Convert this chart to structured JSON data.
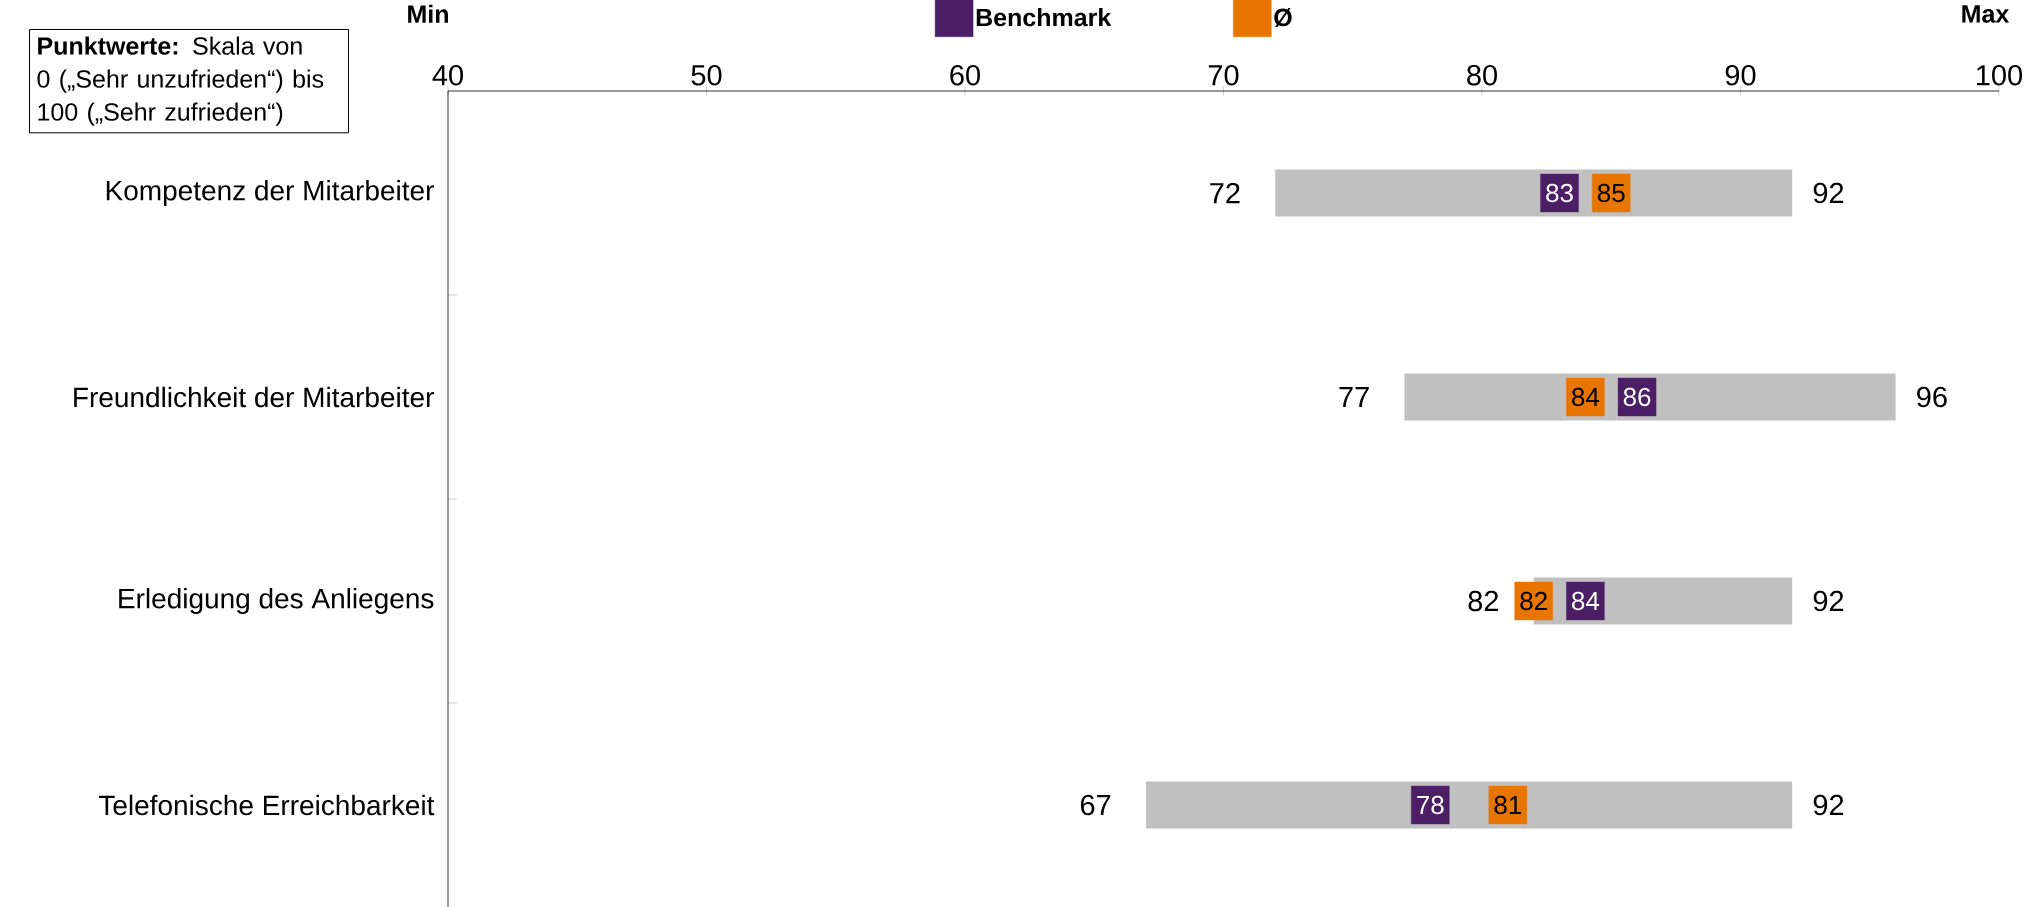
{
  "chart_data": {
    "type": "bar",
    "orientation": "horizontal",
    "categories": [
      "Kompetenz der Mitarbeiter",
      "Freundlichkeit der Mitarbeiter",
      "Erledigung des Anliegens",
      "Telefonische Erreichbarkeit"
    ],
    "series": [
      {
        "type": "bar",
        "color": "#c0c0c0",
        "base": [
          72,
          77,
          82,
          67
        ],
        "values": [
          20,
          19,
          10,
          25
        ]
      },
      {
        "type": "scatter",
        "name": "Benchmark",
        "color": "#4b1e66",
        "values": [
          83,
          86,
          84,
          78
        ],
        "value_labels": [
          "83",
          "86",
          "84",
          "78"
        ]
      },
      {
        "type": "scatter",
        "name": "Ø",
        "color": "#e87500",
        "values": [
          85,
          84,
          82,
          81
        ],
        "value_labels": [
          "85",
          "84",
          "82",
          "81"
        ]
      }
    ],
    "marker": "square",
    "xlim": [
      40,
      100
    ],
    "xticks": [
      40,
      50,
      60,
      70,
      80,
      90,
      100
    ],
    "legend": "top",
    "annotations": [
      "**Punktwerte:** Skala von 0 („Sehr unzufrieden“) bis 100 („Sehr zufrieden“)",
      "Min",
      "Max",
      {
        "text": "72",
        "x": 72,
        "y": "Kompetenz der Mitarbeiter"
      },
      {
        "text": "92",
        "x": 92,
        "y": "Kompetenz der Mitarbeiter"
      },
      {
        "text": "77",
        "x": 77,
        "y": "Freundlichkeit der Mitarbeiter"
      },
      {
        "text": "96",
        "x": 96,
        "y": "Freundlichkeit der Mitarbeiter"
      },
      {
        "text": "82",
        "x": 82,
        "y": "Erledigung des Anliegens"
      },
      {
        "text": "92",
        "x": 92,
        "y": "Erledigung des Anliegens"
      },
      {
        "text": "67",
        "x": 67,
        "y": "Telefonische Erreichbarkeit"
      },
      {
        "text": "92",
        "x": 92,
        "y": "Telefonische Erreichbarkeit"
      }
    ]
  }
}
